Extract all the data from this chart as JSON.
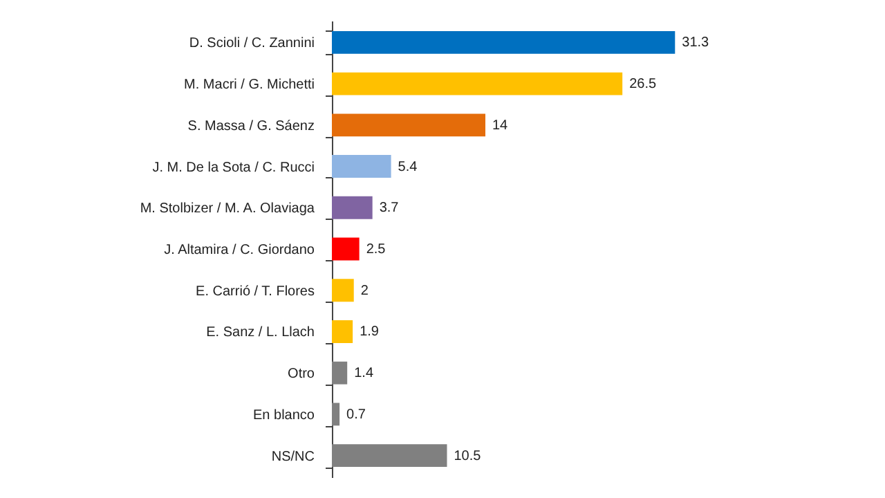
{
  "chart_data": {
    "type": "bar",
    "orientation": "horizontal",
    "data_labels": true,
    "categories": [
      "D. Scioli / C. Zannini",
      "M. Macri / G. Michetti",
      "S. Massa / G. Sáenz",
      "J. M. De la Sota / C. Rucci",
      "M. Stolbizer / M. A. Olaviaga",
      "J. Altamira / C. Giordano",
      "E. Carrió / T. Flores",
      "E. Sanz / L. Llach",
      "Otro",
      "En blanco",
      "NS/NC"
    ],
    "values": [
      31.3,
      26.5,
      14,
      5.4,
      3.7,
      2.5,
      2,
      1.9,
      1.4,
      0.7,
      10.5
    ],
    "colors": [
      "#0070c0",
      "#ffc000",
      "#e46c0a",
      "#8eb4e3",
      "#8064a2",
      "#ff0000",
      "#ffc000",
      "#ffc000",
      "#808080",
      "#808080",
      "#808080"
    ]
  }
}
